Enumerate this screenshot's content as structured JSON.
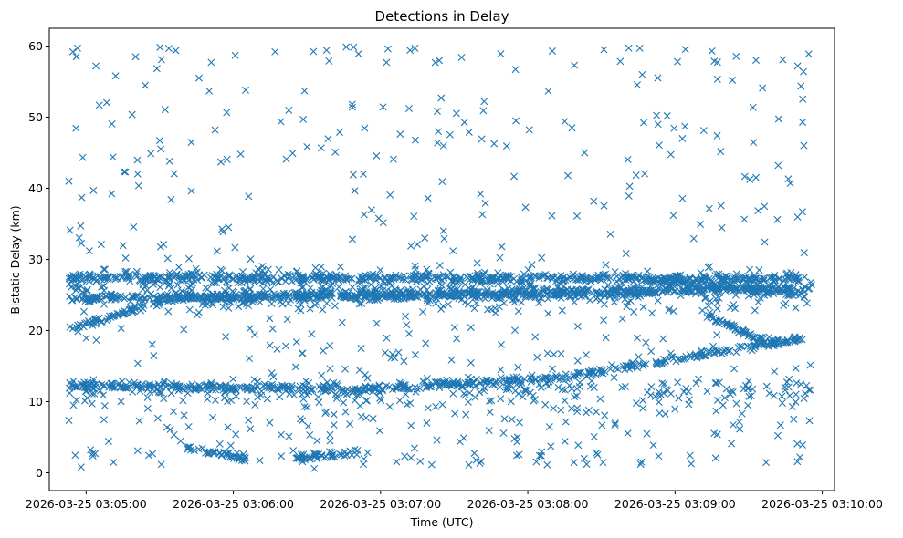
{
  "chart_data": {
    "type": "scatter",
    "title": "Detections in Delay",
    "xlabel": "Time (UTC)",
    "ylabel": "Bistatic Delay (km)",
    "x_tick_labels": [
      "2026-03-25 03:05:00",
      "2026-03-25 03:06:00",
      "2026-03-25 03:07:00",
      "2026-03-25 03:08:00",
      "2026-03-25 03:09:00",
      "2026-03-25 03:10:00"
    ],
    "y_tick_labels": [
      "0",
      "10",
      "20",
      "30",
      "40",
      "50",
      "60"
    ],
    "xlim": [
      "2026-03-25 03:04:45",
      "2026-03-25 03:10:05"
    ],
    "ylim": [
      -2.5,
      62.5
    ],
    "x_range": [
      "2026-03-25 03:04:53",
      "2026-03-25 03:09:56"
    ],
    "grid": false,
    "marker": "x",
    "series_color": "#1f77b4",
    "tracks": [
      {
        "start": [
          0,
          20
        ],
        "end": [
          38,
          24.2
        ]
      },
      {
        "start": [
          38,
          24.5
        ],
        "end": [
          240,
          25.2
        ]
      },
      {
        "start": [
          110,
          11.5
        ],
        "end": [
          205,
          13.5
        ]
      },
      {
        "start": [
          205,
          13.5
        ],
        "end": [
          300,
          19
        ]
      },
      {
        "start": [
          0,
          12.3
        ],
        "end": [
          110,
          11.8
        ]
      },
      {
        "start": [
          0,
          24.5
        ],
        "end": [
          300,
          26
        ]
      },
      {
        "start": [
          0,
          27.5
        ],
        "end": [
          300,
          27.3
        ]
      },
      {
        "start": [
          225,
          27.5
        ],
        "end": [
          300,
          25
        ]
      },
      {
        "start": [
          260,
          22
        ],
        "end": [
          290,
          17.5
        ]
      },
      {
        "start": [
          48,
          3.5
        ],
        "end": [
          72,
          2
        ]
      },
      {
        "start": [
          92,
          2
        ],
        "end": [
          118,
          3
        ]
      }
    ],
    "points_sample": [
      [
        3,
        58.5
      ],
      [
        11,
        57.2
      ],
      [
        19,
        55.8
      ],
      [
        41,
        43.8
      ],
      [
        53,
        55.5
      ],
      [
        58,
        57.7
      ],
      [
        65,
        34.5
      ],
      [
        72,
        53.8
      ],
      [
        84,
        59.2
      ],
      [
        96,
        53.7
      ],
      [
        105,
        59.4
      ],
      [
        118,
        58.9
      ],
      [
        130,
        59.6
      ],
      [
        139,
        59.4
      ],
      [
        141,
        59.7
      ],
      [
        160,
        58.4
      ],
      [
        176,
        58.9
      ],
      [
        182,
        56.7
      ],
      [
        197,
        59.3
      ],
      [
        206,
        57.3
      ],
      [
        248,
        57.8
      ],
      [
        262,
        59.3
      ],
      [
        280,
        58
      ],
      [
        297,
        57.2
      ],
      [
        0,
        41
      ],
      [
        10,
        39.7
      ],
      [
        23,
        42.3
      ],
      [
        70,
        44.8
      ],
      [
        120,
        42
      ],
      [
        145,
        33
      ],
      [
        205,
        48.5
      ],
      [
        250,
        47
      ],
      [
        280,
        41.5
      ],
      [
        299,
        49.3
      ],
      [
        5,
        0.8
      ],
      [
        28,
        3.1
      ],
      [
        100,
        0.6
      ],
      [
        120,
        1.2
      ],
      [
        163,
        1.1
      ],
      [
        210,
        2
      ],
      [
        233,
        1.2
      ],
      [
        270,
        4.1
      ],
      [
        40,
        6.4
      ],
      [
        150,
        4.6
      ],
      [
        268,
        11.8
      ],
      [
        290,
        6.7
      ]
    ]
  }
}
